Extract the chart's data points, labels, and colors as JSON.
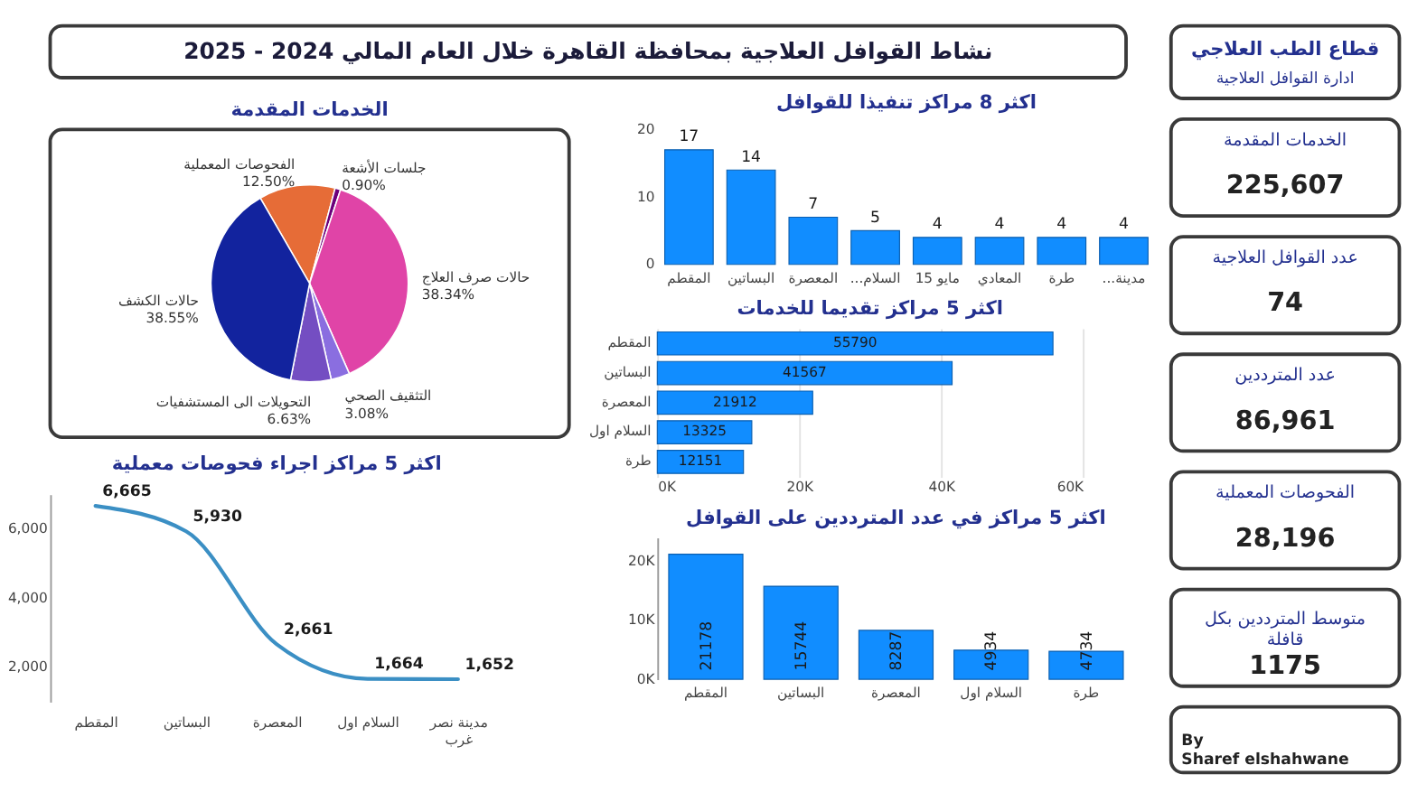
{
  "chart_data": [
    {
      "type": "other",
      "title": "نشاط القوافل العلاجية بمحافظة القاهرة خلال العام المالي 2024 - 2025"
    },
    {
      "type": "pie",
      "title": "الخدمات المقدمة",
      "categories": [
        "الفحوصات المعملية",
        "جلسات الأشعة",
        "حالات صرف العلاج",
        "التثقيف الصحي",
        "التحويلات الى المستشفيات",
        "حالات الكشف"
      ],
      "values": [
        12.5,
        0.9,
        38.34,
        3.08,
        6.63,
        38.55
      ],
      "value_labels": [
        "12.50%",
        "0.90%",
        "38.34%",
        "3.08%",
        "6.63%",
        "38.55%"
      ],
      "colors": [
        "#e66c37",
        "#6b007b",
        "#e044a7",
        "#8a6ee0",
        "#744ec2",
        "#12239e"
      ]
    },
    {
      "type": "bar",
      "title": "اكثر 8 مراكز تنفيذا للقوافل",
      "categories": [
        "المقطم",
        "البساتين",
        "المعصرة",
        "...السلام",
        "15 مايو",
        "المعادي",
        "طرة",
        "...مدينة"
      ],
      "values": [
        17,
        14,
        7,
        5,
        4,
        4,
        4,
        4
      ],
      "color": "#118dff",
      "ylim": [
        0,
        20
      ],
      "yticks": [
        0,
        10,
        20
      ],
      "data_labels": true
    },
    {
      "type": "bar",
      "orientation": "horizontal",
      "title": "اكثر 5 مراكز تقديما للخدمات",
      "categories": [
        "المقطم",
        "البساتين",
        "المعصرة",
        "السلام اول",
        "طرة"
      ],
      "values": [
        55790,
        41567,
        21912,
        13325,
        12151
      ],
      "color": "#118dff",
      "xlim": [
        0,
        60000
      ],
      "xticks": [
        {
          "value": 0,
          "label": "0K"
        },
        {
          "value": 20000,
          "label": "20K"
        },
        {
          "value": 40000,
          "label": "40K"
        },
        {
          "value": 60000,
          "label": "60K"
        }
      ],
      "grid": "x",
      "data_labels": true
    },
    {
      "type": "line",
      "title": "اكثر 5 مراكز اجراء فحوصات معملية",
      "categories": [
        "المقطم",
        "البساتين",
        "المعصرة",
        "السلام اول",
        "مدينة نصر غرب"
      ],
      "values": [
        6665,
        5930,
        2661,
        1664,
        1652
      ],
      "value_labels": [
        "6,665",
        "5,930",
        "2,661",
        "1,664",
        "1,652"
      ],
      "color": "#3b8fc4",
      "ylim": [
        1000,
        7000
      ],
      "yticks": [
        {
          "value": 2000,
          "label": "2,000"
        },
        {
          "value": 4000,
          "label": "4,000"
        },
        {
          "value": 6000,
          "label": "6,000"
        }
      ]
    },
    {
      "type": "bar",
      "title": "اكثر 5 مراكز في عدد المترددين على القوافل",
      "categories": [
        "المقطم",
        "البساتين",
        "المعصرة",
        "السلام اول",
        "طرة"
      ],
      "values": [
        21178,
        15744,
        8287,
        4934,
        4734
      ],
      "color": "#118dff",
      "ylim": [
        0,
        24000
      ],
      "yticks": [
        {
          "value": 0,
          "label": "0K"
        },
        {
          "value": 10000,
          "label": "10K"
        },
        {
          "value": 20000,
          "label": "20K"
        }
      ],
      "data_labels": true
    },
    {
      "type": "other",
      "title": "قطاع الطب العلاجي",
      "subtitle": "ادارة القوافل العلاجية",
      "annotations": [
        "الخدمات المقدمة",
        "225,607",
        "عدد القوافل العلاجية",
        "74",
        "عدد المترددين",
        "86,961",
        "الفحوصات المعملية",
        "28,196",
        "متوسط المترددين بكل قافلة",
        "1175",
        "By\nSharef elshahwane"
      ]
    }
  ]
}
